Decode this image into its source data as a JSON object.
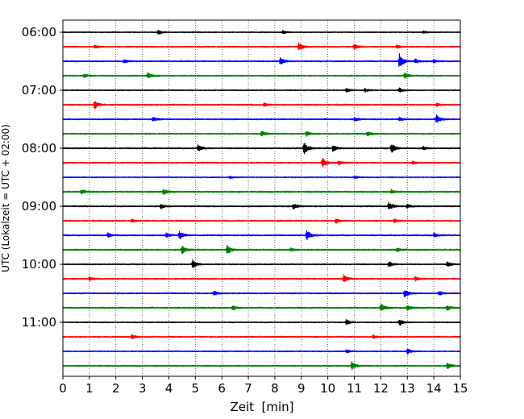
{
  "chart_data": {
    "type": "line",
    "title": "",
    "xlabel": "Zeit  [min]",
    "ylabel": "UTC (Lokalzeit = UTC + 02:00)",
    "xlim": [
      0,
      15
    ],
    "x_ticks": [
      "0",
      "1",
      "2",
      "3",
      "4",
      "5",
      "6",
      "7",
      "8",
      "9",
      "10",
      "11",
      "12",
      "13",
      "14",
      "15"
    ],
    "y_ticks": [
      "06:00",
      "07:00",
      "08:00",
      "09:00",
      "10:00",
      "11:00"
    ],
    "grid": "vertical dotted",
    "color_cycle": [
      "#000000",
      "#ff0000",
      "#0000ff",
      "#008000"
    ],
    "series": [
      {
        "start": "06:00",
        "color": "#000000",
        "noise": 0.1,
        "events": [
          [
            3.6,
            0.5
          ],
          [
            8.3,
            0.35
          ],
          [
            13.6,
            0.3
          ]
        ]
      },
      {
        "start": "06:15",
        "color": "#ff0000",
        "noise": 0.11,
        "events": [
          [
            1.2,
            0.35
          ],
          [
            8.9,
            0.9
          ],
          [
            11.0,
            0.6
          ],
          [
            12.6,
            0.4
          ]
        ]
      },
      {
        "start": "06:30",
        "color": "#0000ff",
        "noise": 0.12,
        "events": [
          [
            2.3,
            0.4
          ],
          [
            8.2,
            0.9
          ],
          [
            12.7,
            1.6
          ],
          [
            13.3,
            0.5
          ],
          [
            14.0,
            0.4
          ]
        ]
      },
      {
        "start": "06:45",
        "color": "#008000",
        "noise": 0.13,
        "events": [
          [
            0.8,
            0.4
          ],
          [
            3.2,
            0.6
          ],
          [
            12.9,
            0.6
          ]
        ]
      },
      {
        "start": "07:00",
        "color": "#000000",
        "noise": 0.1,
        "events": [
          [
            10.7,
            0.5
          ],
          [
            11.4,
            0.4
          ],
          [
            12.7,
            0.5
          ]
        ]
      },
      {
        "start": "07:15",
        "color": "#ff0000",
        "noise": 0.12,
        "events": [
          [
            1.2,
            1.0
          ],
          [
            7.6,
            0.4
          ],
          [
            14.1,
            0.3
          ]
        ]
      },
      {
        "start": "07:30",
        "color": "#0000ff",
        "noise": 0.12,
        "events": [
          [
            3.4,
            0.5
          ],
          [
            11.0,
            0.5
          ],
          [
            12.7,
            0.4
          ],
          [
            14.1,
            0.9
          ]
        ]
      },
      {
        "start": "07:45",
        "color": "#008000",
        "noise": 0.12,
        "events": [
          [
            7.5,
            0.6
          ],
          [
            9.2,
            0.6
          ],
          [
            11.5,
            0.5
          ]
        ]
      },
      {
        "start": "08:00",
        "color": "#000000",
        "noise": 0.13,
        "events": [
          [
            5.1,
            0.7
          ],
          [
            9.1,
            1.5
          ],
          [
            10.2,
            0.9
          ],
          [
            12.4,
            1.1
          ],
          [
            13.6,
            0.4
          ]
        ]
      },
      {
        "start": "08:15",
        "color": "#ff0000",
        "noise": 0.12,
        "events": [
          [
            9.8,
            1.1
          ],
          [
            10.4,
            0.5
          ],
          [
            13.2,
            0.3
          ]
        ]
      },
      {
        "start": "08:30",
        "color": "#0000ff",
        "noise": 0.1,
        "events": [
          [
            6.3,
            0.3
          ],
          [
            11.0,
            0.3
          ]
        ]
      },
      {
        "start": "08:45",
        "color": "#008000",
        "noise": 0.14,
        "events": [
          [
            0.7,
            0.5
          ],
          [
            3.8,
            0.6
          ],
          [
            12.4,
            0.4
          ]
        ]
      },
      {
        "start": "09:00",
        "color": "#000000",
        "noise": 0.13,
        "events": [
          [
            3.7,
            0.5
          ],
          [
            8.7,
            0.6
          ],
          [
            12.3,
            1.0
          ],
          [
            13.0,
            0.4
          ]
        ]
      },
      {
        "start": "09:15",
        "color": "#ff0000",
        "noise": 0.12,
        "events": [
          [
            2.6,
            0.3
          ],
          [
            10.3,
            0.5
          ],
          [
            12.5,
            0.4
          ]
        ]
      },
      {
        "start": "09:30",
        "color": "#0000ff",
        "noise": 0.13,
        "events": [
          [
            1.7,
            0.5
          ],
          [
            3.9,
            0.5
          ],
          [
            4.4,
            0.9
          ],
          [
            9.2,
            1.1
          ],
          [
            14.0,
            0.5
          ]
        ]
      },
      {
        "start": "09:45",
        "color": "#008000",
        "noise": 0.14,
        "events": [
          [
            4.5,
            1.0
          ],
          [
            6.2,
            1.1
          ],
          [
            8.6,
            0.4
          ],
          [
            12.6,
            0.4
          ]
        ]
      },
      {
        "start": "10:00",
        "color": "#000000",
        "noise": 0.11,
        "events": [
          [
            4.9,
            1.0
          ],
          [
            12.3,
            0.6
          ],
          [
            14.5,
            0.6
          ]
        ]
      },
      {
        "start": "10:15",
        "color": "#ff0000",
        "noise": 0.12,
        "events": [
          [
            1.0,
            0.4
          ],
          [
            10.6,
            0.9
          ],
          [
            13.3,
            0.5
          ]
        ]
      },
      {
        "start": "10:30",
        "color": "#0000ff",
        "noise": 0.12,
        "events": [
          [
            5.7,
            0.5
          ],
          [
            12.9,
            0.9
          ],
          [
            14.2,
            0.5
          ]
        ]
      },
      {
        "start": "10:45",
        "color": "#008000",
        "noise": 0.14,
        "events": [
          [
            6.4,
            0.5
          ],
          [
            12.0,
            0.9
          ],
          [
            13.0,
            0.6
          ],
          [
            14.5,
            0.5
          ]
        ]
      },
      {
        "start": "11:00",
        "color": "#000000",
        "noise": 0.1,
        "events": [
          [
            10.7,
            0.6
          ],
          [
            12.7,
            0.8
          ]
        ]
      },
      {
        "start": "11:15",
        "color": "#ff0000",
        "noise": 0.12,
        "events": [
          [
            2.6,
            0.6
          ],
          [
            11.7,
            0.4
          ]
        ]
      },
      {
        "start": "11:30",
        "color": "#0000ff",
        "noise": 0.1,
        "events": [
          [
            10.7,
            0.4
          ],
          [
            13.0,
            0.6
          ]
        ]
      },
      {
        "start": "11:45",
        "color": "#008000",
        "noise": 0.12,
        "events": [
          [
            10.9,
            1.0
          ],
          [
            14.5,
            0.8
          ]
        ]
      }
    ]
  }
}
